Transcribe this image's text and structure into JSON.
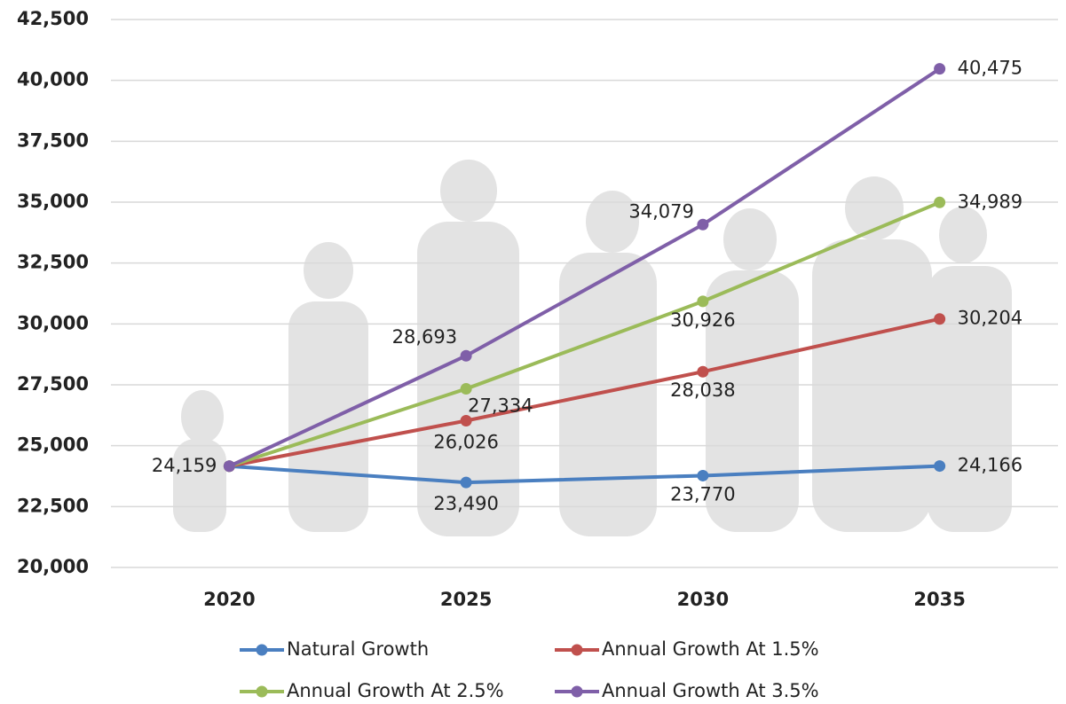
{
  "chart_data": {
    "type": "line",
    "categories": [
      "2020",
      "2025",
      "2030",
      "2035"
    ],
    "ylim": [
      20000,
      42500
    ],
    "yticks": [
      {
        "value": 20000,
        "label": "20,000"
      },
      {
        "value": 22500,
        "label": "22,500"
      },
      {
        "value": 25000,
        "label": "25,000"
      },
      {
        "value": 27500,
        "label": "27,500"
      },
      {
        "value": 30000,
        "label": "30,000"
      },
      {
        "value": 32500,
        "label": "32,500"
      },
      {
        "value": 35000,
        "label": "35,000"
      },
      {
        "value": 37500,
        "label": "37,500"
      },
      {
        "value": 40000,
        "label": "40,000"
      },
      {
        "value": 42500,
        "label": "42,500"
      }
    ],
    "grid": true,
    "legend": "bottom",
    "series": [
      {
        "name": "Natural Growth",
        "color": "#4a7fc0",
        "values": [
          24159,
          23490,
          23770,
          24166
        ],
        "value_labels": [
          "24,159",
          "23,490",
          "23,770",
          "24,166"
        ]
      },
      {
        "name": "Annual Growth At 1.5%",
        "color": "#c0504d",
        "values": [
          24159,
          26026,
          28038,
          30204
        ],
        "value_labels": [
          null,
          "26,026",
          "28,038",
          "30,204"
        ]
      },
      {
        "name": "Annual Growth At 2.5%",
        "color": "#9bbb59",
        "values": [
          24159,
          27334,
          30926,
          34989
        ],
        "value_labels": [
          null,
          "27,334",
          "30,926",
          "34,989"
        ]
      },
      {
        "name": "Annual Growth At 3.5%",
        "color": "#7f5fa8",
        "values": [
          24159,
          28693,
          34079,
          40475
        ],
        "value_labels": [
          null,
          "28,693",
          "34,079",
          "40,475"
        ]
      }
    ]
  }
}
